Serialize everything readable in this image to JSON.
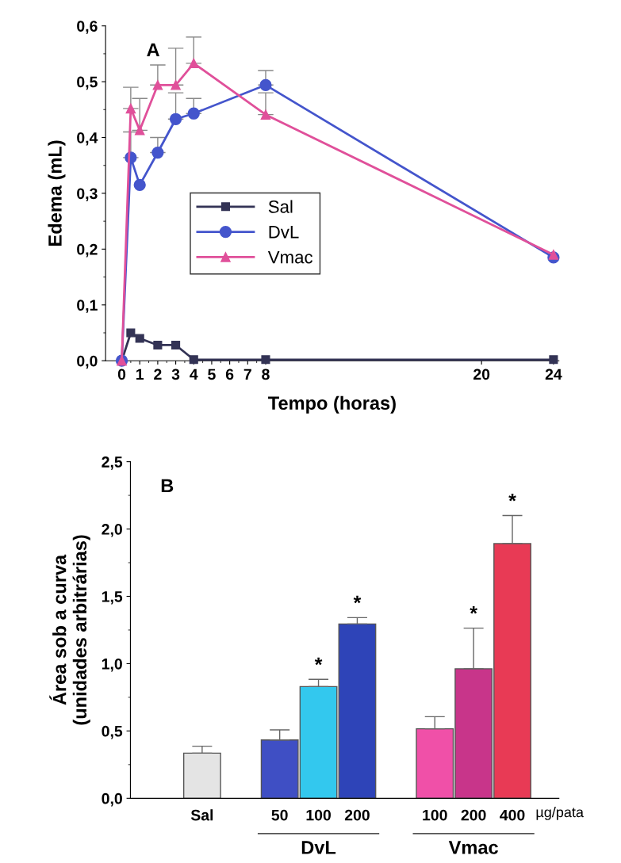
{
  "chart_data": [
    {
      "type": "line",
      "xlabel": "Tempo (horas)",
      "ylabel": "Edema (mL)",
      "annotations": [
        "A"
      ],
      "x": [
        0,
        0.5,
        1,
        2,
        3,
        4,
        8,
        24
      ],
      "xlim": [
        -0.9,
        24.3
      ],
      "xticks": [
        0,
        1,
        2,
        3,
        4,
        5,
        6,
        7,
        8,
        20,
        24
      ],
      "ylim": [
        0,
        0.6
      ],
      "yticks": [
        {
          "value": 0,
          "label": "0,0"
        },
        {
          "value": 0.1,
          "label": "0,1"
        },
        {
          "value": 0.2,
          "label": "0,2"
        },
        {
          "value": 0.3,
          "label": "0,3"
        },
        {
          "value": 0.4,
          "label": "0,4"
        },
        {
          "value": 0.5,
          "label": "0,5"
        },
        {
          "value": 0.6,
          "label": "0,6"
        }
      ],
      "legend": "center",
      "series": [
        {
          "name": "Sal",
          "color": "#333355",
          "marker": "square",
          "values": [
            0,
            0.05,
            0.04,
            0.028,
            0.028,
            0.002,
            0.002,
            0.002
          ]
        },
        {
          "name": "DvL",
          "color": "#4455cc",
          "marker": "circle",
          "values": [
            0,
            0.364,
            0.315,
            0.373,
            0.433,
            0.443,
            0.494,
            0.185
          ],
          "errors": [
            null,
            [
              0.364,
              0.41
            ],
            null,
            [
              0.373,
              0.4
            ],
            [
              0.433,
              0.48
            ],
            [
              0.443,
              0.47
            ],
            [
              0.494,
              0.52
            ],
            null
          ]
        },
        {
          "name": "Vmac",
          "color": "#e0509a",
          "marker": "triangle",
          "values": [
            0,
            0.452,
            0.413,
            0.494,
            0.494,
            0.533,
            0.441,
            0.19
          ],
          "errors": [
            null,
            [
              0.452,
              0.49
            ],
            [
              0.413,
              0.47
            ],
            [
              0.494,
              0.53
            ],
            [
              0.494,
              0.56
            ],
            [
              0.533,
              0.58
            ],
            [
              0.441,
              0.48
            ],
            null
          ]
        }
      ]
    },
    {
      "type": "bar",
      "ylabel": "Área sob a curva\n(unidades arbitrárias)",
      "annotations": [
        "B",
        "µg/pata",
        "DvL",
        "Vmac"
      ],
      "categories": [
        "Sal",
        null,
        "50",
        "100",
        "200",
        null,
        "100",
        "200",
        "400"
      ],
      "values": [
        0.335,
        null,
        0.433,
        0.83,
        1.295,
        null,
        0.516,
        0.962,
        1.892
      ],
      "colors": [
        "#e4e4e4",
        null,
        "#3f4fc4",
        "#33c8ee",
        "#2e44b8",
        null,
        "#f050a8",
        "#c8358a",
        "#e83a55"
      ],
      "errors": [
        [
          0.335,
          0.387
        ],
        null,
        [
          0.433,
          0.508
        ],
        [
          0.83,
          0.883
        ],
        [
          1.295,
          1.342
        ],
        null,
        [
          0.516,
          0.606
        ],
        [
          0.962,
          1.264
        ],
        [
          1.892,
          2.1
        ]
      ],
      "value_labels": [
        null,
        null,
        null,
        "*",
        "*",
        null,
        null,
        "*",
        "*"
      ],
      "ylim": [
        0,
        2.5
      ],
      "yticks": [
        {
          "value": 0,
          "label": "0,0"
        },
        {
          "value": 0.5,
          "label": "0,5"
        },
        {
          "value": 1,
          "label": "1,0"
        },
        {
          "value": 1.5,
          "label": "1,5"
        },
        {
          "value": 2,
          "label": "2,0"
        },
        {
          "value": 2.5,
          "label": "2,5"
        }
      ]
    }
  ]
}
